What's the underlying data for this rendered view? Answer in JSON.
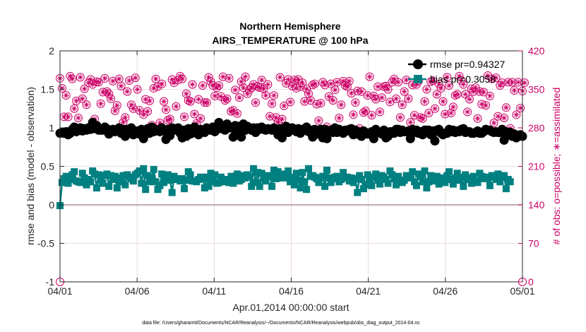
{
  "chart_data": {
    "type": "line",
    "title": "Northern Hemisphere",
    "subtitle": "AIRS_TEMPERATURE @ 100 hPa",
    "xlabel": "Apr.01,2014 00:00:00 start",
    "ylabel": "rmse and bias (model - observation)",
    "y2label": "# of obs: o=possible; ∗=assimilated",
    "footnote": "data file: /Users/gharamti/Documents/NCAR/Reanalysis/~/Documents/NCAR/Reanalysis/webpub/obs_diag_output_2014-04.nc",
    "xlim": [
      0,
      30
    ],
    "ylim": [
      -1,
      2
    ],
    "y2lim": [
      0,
      420
    ],
    "grid": true,
    "legend_position": "top-right",
    "x_tick_labels": [
      "04/01",
      "04/06",
      "04/11",
      "04/16",
      "04/21",
      "04/26",
      "05/01"
    ],
    "x_tick_values": [
      0,
      5,
      10,
      15,
      20,
      25,
      30
    ],
    "y_tick_labels": [
      "2",
      "1.5",
      "1",
      "0.5",
      "0",
      "-0.5",
      "-1"
    ],
    "y_tick_values": [
      2,
      1.5,
      1,
      0.5,
      0,
      -0.5,
      -1
    ],
    "y2_tick_labels": [
      "420",
      "350",
      "280",
      "210",
      "140",
      "70",
      "0"
    ],
    "y2_tick_values": [
      420,
      350,
      280,
      210,
      140,
      70,
      0
    ],
    "colors": {
      "rmse": "#000000",
      "bias": "#008080",
      "obs": "#cc0066",
      "zero": "#b09090"
    },
    "series": [
      {
        "name": "rmse pr=0.94327",
        "axis": "left",
        "marker": "circle",
        "values": [
          0.93,
          0.94,
          0.93,
          0.95,
          0.91,
          0.93,
          0.98,
          1.01,
          0.95,
          0.97,
          1.0,
          0.96,
          0.99,
          0.97,
          1.0,
          0.98,
          1.07,
          0.99,
          1.03,
          0.97,
          0.97,
          0.97,
          1.01,
          0.99,
          0.92,
          0.97,
          0.98,
          0.95,
          0.97,
          1.0,
          0.93,
          0.98,
          0.89,
          0.98,
          0.95,
          1.0,
          0.91,
          0.95,
          0.96,
          0.92,
          0.98,
          0.86,
          0.96,
          0.99,
          0.93,
          1.01,
          0.95,
          0.98,
          0.97,
          0.95,
          1.0,
          0.96,
          0.85,
          0.98,
          0.9,
          1.0,
          0.97,
          0.99,
          1.0,
          0.93,
          0.87,
          0.97,
          0.89,
          0.99,
          0.92,
          0.98,
          1.01,
          0.93,
          0.91,
          0.98,
          0.96,
          0.94,
          1.0,
          0.98,
          0.97,
          1.01,
          0.95,
          1.01,
          1.07,
          0.99,
          1.02,
          0.97,
          1.05,
          1.0,
          1.0,
          0.88,
          1.03,
          0.91,
          1.02,
          0.88,
          1.05,
          0.97,
          1.02,
          0.99,
          0.97,
          1.0,
          0.94,
          1.0,
          0.98,
          1.01,
          0.98,
          0.97,
          0.99,
          0.98,
          0.97,
          1.0,
          0.98,
          0.91,
          0.99,
          0.87,
          0.95,
          1.02,
          0.94,
          0.98,
          1.0,
          0.97,
          0.95,
          0.99,
          0.93,
          0.98,
          0.97,
          1.01,
          0.95,
          0.97,
          0.88,
          0.98,
          0.92,
          0.97,
          0.98,
          0.87,
          0.98,
          0.86,
          0.96,
          0.97,
          0.94,
          1.0,
          0.94,
          0.98,
          0.95,
          0.93,
          0.97,
          0.96,
          0.98,
          0.99,
          0.91,
          0.97,
          0.92,
          0.94,
          0.89,
          0.96,
          0.94,
          0.92,
          0.93,
          0.95,
          0.86,
          0.98,
          0.94,
          0.94,
          0.92,
          0.97,
          0.87,
          0.89,
          0.95,
          0.95,
          0.93,
          0.98,
          0.98,
          0.94,
          0.97,
          0.95,
          0.95,
          0.96,
          0.86,
          0.98,
          0.94,
          0.97,
          0.93,
          0.95,
          0.91,
          0.97,
          0.97,
          0.97,
          0.91,
          0.96,
          0.83,
          0.97,
          0.98,
          0.93,
          0.91,
          0.93,
          0.93,
          0.98,
          0.95,
          0.97,
          0.94,
          0.96,
          0.95,
          0.98,
          0.99,
          0.94,
          0.95,
          0.95,
          0.93,
          0.93,
          0.94,
          0.96,
          0.93,
          0.93,
          0.95,
          0.98,
          0.97,
          0.97,
          0.95,
          0.94,
          0.95,
          0.94,
          0.94,
          0.98,
          0.84,
          0.95,
          0.92,
          0.94,
          0.89,
          0.92,
          0.87,
          0.9,
          0.91,
          0.89
        ]
      },
      {
        "name": "bias pr=0.3058",
        "axis": "left",
        "marker": "square",
        "values": [
          -0.01,
          0.29,
          0.34,
          0.37,
          0.28,
          0.33,
          0.39,
          0.43,
          0.31,
          0.3,
          0.29,
          0.41,
          0.35,
          0.26,
          0.33,
          0.3,
          0.44,
          0.4,
          0.22,
          0.39,
          0.32,
          0.28,
          0.38,
          0.4,
          0.24,
          0.38,
          0.33,
          0.37,
          0.22,
          0.3,
          0.35,
          0.38,
          0.26,
          0.39,
          0.36,
          0.34,
          0.31,
          0.39,
          0.41,
          0.44,
          0.28,
          0.47,
          0.2,
          0.38,
          0.3,
          0.36,
          0.46,
          0.3,
          0.2,
          0.25,
          0.4,
          0.29,
          0.36,
          0.39,
          0.32,
          0.16,
          0.37,
          0.33,
          0.34,
          0.31,
          0.34,
          0.21,
          0.32,
          0.43,
          0.39,
          0.31,
          0.31,
          0.3,
          0.33,
          0.36,
          0.34,
          0.22,
          0.36,
          0.24,
          0.41,
          0.3,
          0.39,
          0.28,
          0.29,
          0.36,
          0.32,
          0.3,
          0.33,
          0.29,
          0.37,
          0.28,
          0.37,
          0.4,
          0.31,
          0.33,
          0.38,
          0.35,
          0.39,
          0.37,
          0.24,
          0.47,
          0.29,
          0.42,
          0.24,
          0.41,
          0.34,
          0.31,
          0.38,
          0.37,
          0.24,
          0.45,
          0.34,
          0.43,
          0.35,
          0.38,
          0.4,
          0.35,
          0.44,
          0.3,
          0.36,
          0.26,
          0.41,
          0.32,
          0.22,
          0.42,
          0.3,
          0.2,
          0.47,
          0.37,
          0.38,
          0.36,
          0.34,
          0.29,
          0.35,
          0.37,
          0.24,
          0.45,
          0.35,
          0.29,
          0.34,
          0.36,
          0.37,
          0.3,
          0.33,
          0.42,
          0.35,
          0.36,
          0.31,
          0.35,
          0.29,
          0.34,
          0.16,
          0.38,
          0.33,
          0.21,
          0.26,
          0.39,
          0.33,
          0.25,
          0.36,
          0.4,
          0.32,
          0.27,
          0.38,
          0.36,
          0.33,
          0.28,
          0.44,
          0.39,
          0.34,
          0.26,
          0.37,
          0.31,
          0.29,
          0.32,
          0.38,
          0.36,
          0.35,
          0.43,
          0.3,
          0.25,
          0.4,
          0.37,
          0.3,
          0.44,
          0.22,
          0.3,
          0.38,
          0.34,
          0.31,
          0.37,
          0.27,
          0.35,
          0.32,
          0.29,
          0.38,
          0.43,
          0.33,
          0.27,
          0.35,
          0.41,
          0.32,
          0.36,
          0.24,
          0.39,
          0.33,
          0.35,
          0.28,
          0.37,
          0.31,
          0.29,
          0.41,
          0.37,
          0.34,
          0.36,
          0.34,
          0.25,
          0.38,
          0.36,
          0.33,
          0.4,
          0.3,
          0.36,
          0.38,
          0.21,
          0.33,
          0.3
        ]
      },
      {
        "name": "obs possible",
        "axis": "right",
        "marker": "circle-open",
        "values": [
          370,
          352,
          300,
          339,
          300,
          374,
          369,
          315,
          329,
          298,
          372,
          333,
          351,
          322,
          362,
          368,
          359,
          296,
          364,
          363,
          324,
          345,
          370,
          346,
          342,
          333,
          365,
          311,
          321,
          369,
          356,
          290,
          299,
          346,
          366,
          322,
          315,
          371,
          350,
          312,
          273,
          304,
          332,
          310,
          329,
          285,
          352,
          369,
          355,
          289,
          360,
          328,
          313,
          294,
          296,
          368,
          362,
          319,
          367,
          374,
          369,
          300,
          342,
          330,
          328,
          359,
          305,
          288,
          332,
          297,
          357,
          326,
          326,
          372,
          364,
          357,
          338,
          353,
          357,
          337,
          373,
          330,
          333,
          370,
          310,
          312,
          349,
          306,
          335,
          364,
          353,
          373,
          342,
          349,
          353,
          359,
          326,
          355,
          353,
          367,
          351,
          339,
          359,
          301,
          324,
          339,
          299,
          290,
          372,
          296,
          320,
          361,
          368,
          327,
          356,
          367,
          352,
          368,
          355,
          362,
          328,
          351,
          342,
          330,
          358,
          360,
          323,
          293,
          325,
          363,
          358,
          282,
          337,
          360,
          330,
          349,
          363,
          298,
          322,
          365,
          357,
          355,
          365,
          343,
          304,
          326,
          347,
          279,
          346,
          308,
          311,
          339,
          373,
          303,
          338,
          332,
          355,
          309,
          335,
          355,
          356,
          350,
          327,
          363,
          369,
          333,
          363,
          299,
          322,
          346,
          367,
          333,
          290,
          358,
          303,
          359,
          365,
          299,
          297,
          328,
          350,
          307,
          364,
          366,
          315,
          341,
          360,
          352,
          328,
          305,
          372,
          357,
          307,
          318,
          339,
          341,
          374,
          366,
          359,
          341,
          309,
          332,
          351,
          346,
          353,
          297,
          346,
          323,
          345,
          321,
          375,
          338,
          369,
          289,
          371,
          301,
          357,
          362,
          298,
          317,
          363,
          279,
          363,
          348,
          304,
          363,
          316,
          347,
          362
        ]
      },
      {
        "name": "obs assimilated",
        "axis": "right",
        "marker": "asterisk",
        "values": [
          370,
          352,
          300,
          339,
          300,
          374,
          369,
          315,
          329,
          298,
          372,
          333,
          351,
          322,
          362,
          368,
          359,
          296,
          364,
          363,
          324,
          345,
          370,
          346,
          342,
          333,
          365,
          311,
          321,
          369,
          356,
          290,
          299,
          346,
          366,
          322,
          315,
          371,
          350,
          312,
          273,
          304,
          332,
          310,
          329,
          285,
          352,
          369,
          355,
          289,
          360,
          328,
          313,
          294,
          296,
          368,
          362,
          319,
          367,
          374,
          369,
          300,
          342,
          330,
          328,
          359,
          305,
          288,
          332,
          297,
          357,
          326,
          326,
          372,
          364,
          357,
          338,
          353,
          357,
          337,
          373,
          330,
          333,
          370,
          310,
          312,
          349,
          306,
          335,
          364,
          353,
          373,
          342,
          349,
          353,
          359,
          326,
          355,
          353,
          367,
          351,
          339,
          359,
          301,
          324,
          339,
          299,
          290,
          372,
          296,
          320,
          361,
          368,
          327,
          356,
          367,
          352,
          368,
          355,
          362,
          328,
          351,
          342,
          330,
          358,
          360,
          323,
          293,
          325,
          363,
          358,
          282,
          337,
          360,
          330,
          349,
          363,
          298,
          322,
          365,
          357,
          355,
          365,
          343,
          304,
          326,
          347,
          279,
          346,
          308,
          311,
          339,
          373,
          303,
          338,
          332,
          355,
          309,
          335,
          355,
          356,
          350,
          327,
          363,
          369,
          333,
          363,
          299,
          322,
          346,
          367,
          333,
          290,
          358,
          303,
          359,
          365,
          299,
          297,
          328,
          350,
          307,
          364,
          366,
          315,
          341,
          360,
          352,
          328,
          305,
          372,
          357,
          307,
          318,
          339,
          341,
          374,
          366,
          359,
          341,
          309,
          332,
          351,
          346,
          353,
          297,
          346,
          323,
          345,
          321,
          375,
          338,
          369,
          289,
          371,
          301,
          357,
          362,
          298,
          317,
          363,
          279,
          363,
          348,
          304,
          363,
          316,
          347,
          362
        ]
      }
    ]
  }
}
